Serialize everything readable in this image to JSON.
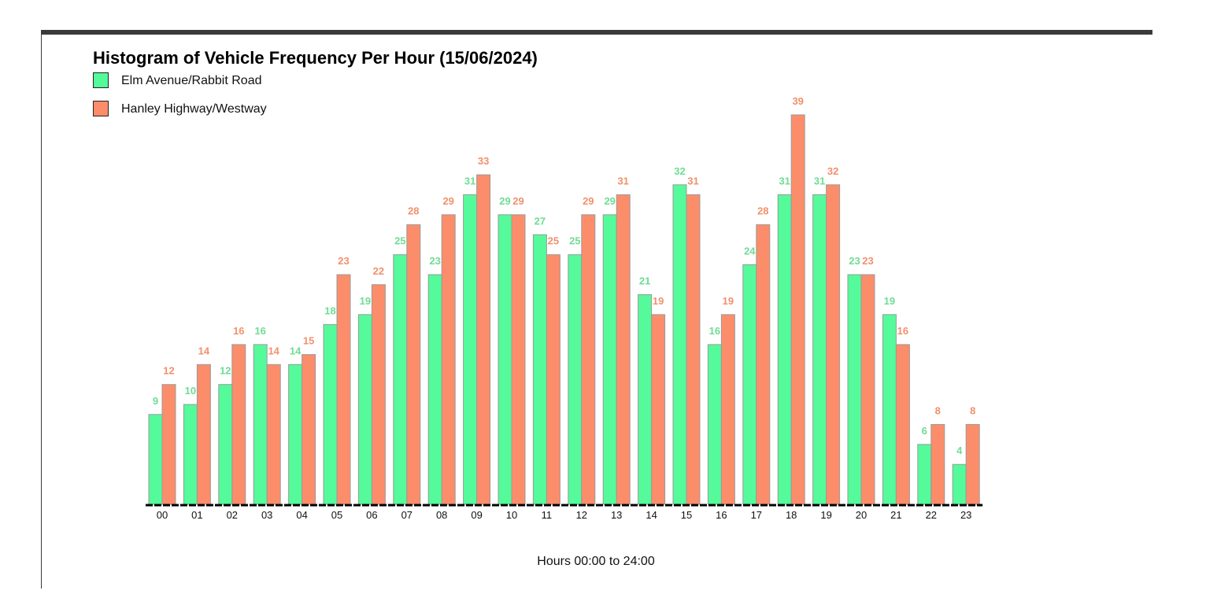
{
  "chart_data": {
    "type": "bar",
    "title": "Histogram of Vehicle Frequency Per Hour (15/06/2024)",
    "xlabel": "Hours 00:00 to 24:00",
    "ylabel": "",
    "ylim": [
      0,
      39
    ],
    "grid": false,
    "legend_placement": "top-left",
    "categories": [
      "00",
      "01",
      "02",
      "03",
      "04",
      "05",
      "06",
      "07",
      "08",
      "09",
      "10",
      "11",
      "12",
      "13",
      "14",
      "15",
      "16",
      "17",
      "18",
      "19",
      "20",
      "21",
      "22",
      "23"
    ],
    "series": [
      {
        "name": "Elm Avenue/Rabbit Road",
        "color": "#55fa9a",
        "label_color": "#6fdc93",
        "values": [
          9,
          10,
          12,
          16,
          14,
          18,
          19,
          25,
          23,
          31,
          29,
          27,
          25,
          29,
          21,
          32,
          16,
          24,
          31,
          31,
          23,
          19,
          6,
          4
        ]
      },
      {
        "name": "Hanley Highway/Westway",
        "color": "#fc8d6a",
        "label_color": "#f2906c",
        "values": [
          12,
          14,
          16,
          14,
          15,
          23,
          22,
          28,
          29,
          33,
          29,
          25,
          29,
          31,
          19,
          31,
          19,
          28,
          39,
          32,
          23,
          16,
          8,
          8
        ]
      }
    ]
  }
}
